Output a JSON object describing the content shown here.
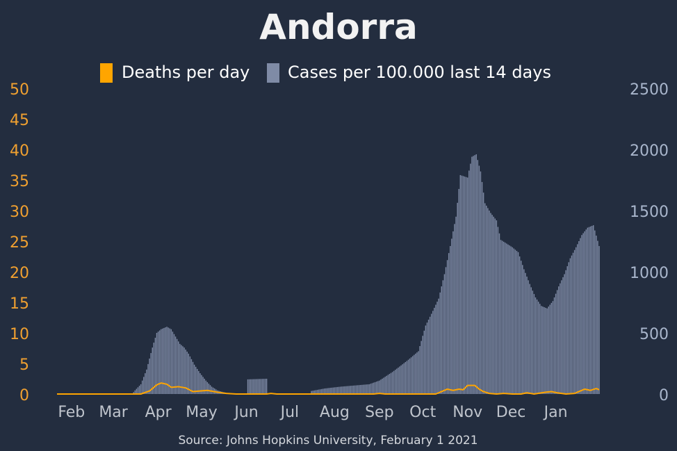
{
  "colors": {
    "background": "#232d3f",
    "deaths": "#ffa500",
    "cases": "#7f8ba6",
    "left_axis": "#f0a030",
    "right_axis": "#a9b6cc",
    "month_labels": "#bfc4cc",
    "title": "#f2f2f2"
  },
  "chart_data": {
    "type": "bar",
    "title": "Andorra",
    "source": "Source: Johns Hopkins University, February 1 2021",
    "legend": {
      "placement": "top-center",
      "entries": [
        "Deaths per day",
        "Cases per 100.000 last 14 days"
      ]
    },
    "grid": false,
    "x_axis": {
      "type": "date",
      "range": [
        "2020-01-22",
        "2021-01-31"
      ],
      "tick_labels": [
        "Feb",
        "Mar",
        "Apr",
        "May",
        "Jun",
        "Jul",
        "Aug",
        "Sep",
        "Oct",
        "Nov",
        "Dec",
        "Jan"
      ]
    },
    "y_left": {
      "label": "",
      "range": [
        0,
        50
      ],
      "ticks": [
        "0",
        "5",
        "10",
        "15",
        "20",
        "25",
        "30",
        "35",
        "40",
        "45",
        "50"
      ]
    },
    "y_right": {
      "label": "",
      "range": [
        0,
        2500
      ],
      "ticks": [
        "0",
        "500",
        "1000",
        "1500",
        "2000",
        "2500"
      ]
    },
    "series": [
      {
        "name": "Cases per 100.000 last 14 days",
        "type": "bar",
        "axis": "right",
        "points": [
          [
            "2020-01-22",
            0
          ],
          [
            "2020-03-01",
            0
          ],
          [
            "2020-03-14",
            0
          ],
          [
            "2020-03-16",
            30
          ],
          [
            "2020-03-20",
            80
          ],
          [
            "2020-03-24",
            200
          ],
          [
            "2020-03-28",
            380
          ],
          [
            "2020-03-31",
            500
          ],
          [
            "2020-04-03",
            530
          ],
          [
            "2020-04-07",
            550
          ],
          [
            "2020-04-10",
            530
          ],
          [
            "2020-04-13",
            470
          ],
          [
            "2020-04-16",
            410
          ],
          [
            "2020-04-19",
            380
          ],
          [
            "2020-04-22",
            330
          ],
          [
            "2020-04-26",
            240
          ],
          [
            "2020-04-30",
            170
          ],
          [
            "2020-05-04",
            110
          ],
          [
            "2020-05-08",
            60
          ],
          [
            "2020-05-12",
            30
          ],
          [
            "2020-05-16",
            15
          ],
          [
            "2020-05-20",
            5
          ],
          [
            "2020-05-24",
            0
          ],
          [
            "2020-06-01",
            0
          ],
          [
            "2020-06-02",
            120
          ],
          [
            "2020-06-15",
            125
          ],
          [
            "2020-06-16",
            0
          ],
          [
            "2020-07-15",
            0
          ],
          [
            "2020-07-16",
            25
          ],
          [
            "2020-07-25",
            45
          ],
          [
            "2020-08-05",
            60
          ],
          [
            "2020-08-15",
            70
          ],
          [
            "2020-08-25",
            80
          ],
          [
            "2020-09-01",
            110
          ],
          [
            "2020-09-10",
            180
          ],
          [
            "2020-09-20",
            270
          ],
          [
            "2020-09-28",
            350
          ],
          [
            "2020-10-03",
            560
          ],
          [
            "2020-10-08",
            680
          ],
          [
            "2020-10-12",
            780
          ],
          [
            "2020-10-16",
            980
          ],
          [
            "2020-10-20",
            1210
          ],
          [
            "2020-10-24",
            1450
          ],
          [
            "2020-10-27",
            1790
          ],
          [
            "2020-11-01",
            1770
          ],
          [
            "2020-11-04",
            1940
          ],
          [
            "2020-11-07",
            1960
          ],
          [
            "2020-11-10",
            1820
          ],
          [
            "2020-11-13",
            1560
          ],
          [
            "2020-11-17",
            1480
          ],
          [
            "2020-11-21",
            1420
          ],
          [
            "2020-11-24",
            1260
          ],
          [
            "2020-11-28",
            1230
          ],
          [
            "2020-12-02",
            1200
          ],
          [
            "2020-12-06",
            1160
          ],
          [
            "2020-12-10",
            1020
          ],
          [
            "2020-12-14",
            900
          ],
          [
            "2020-12-18",
            790
          ],
          [
            "2020-12-22",
            720
          ],
          [
            "2020-12-26",
            700
          ],
          [
            "2020-12-30",
            760
          ],
          [
            "2021-01-03",
            880
          ],
          [
            "2021-01-07",
            980
          ],
          [
            "2021-01-11",
            1110
          ],
          [
            "2021-01-15",
            1200
          ],
          [
            "2021-01-19",
            1300
          ],
          [
            "2021-01-23",
            1360
          ],
          [
            "2021-01-27",
            1380
          ],
          [
            "2021-01-31",
            1210
          ]
        ]
      },
      {
        "name": "Deaths per day",
        "type": "line",
        "axis": "left",
        "points": [
          [
            "2020-01-22",
            0
          ],
          [
            "2020-03-20",
            0
          ],
          [
            "2020-03-26",
            0.5
          ],
          [
            "2020-03-31",
            1.5
          ],
          [
            "2020-04-03",
            1.8
          ],
          [
            "2020-04-07",
            1.6
          ],
          [
            "2020-04-10",
            1.1
          ],
          [
            "2020-04-15",
            1.2
          ],
          [
            "2020-04-20",
            1.0
          ],
          [
            "2020-04-25",
            0.4
          ],
          [
            "2020-04-30",
            0.5
          ],
          [
            "2020-05-05",
            0.6
          ],
          [
            "2020-05-12",
            0.3
          ],
          [
            "2020-05-18",
            0.1
          ],
          [
            "2020-05-25",
            0
          ],
          [
            "2020-06-15",
            0
          ],
          [
            "2020-06-18",
            0.1
          ],
          [
            "2020-06-22",
            0
          ],
          [
            "2020-08-28",
            0
          ],
          [
            "2020-09-01",
            0.1
          ],
          [
            "2020-09-05",
            0
          ],
          [
            "2020-10-10",
            0
          ],
          [
            "2020-10-14",
            0.4
          ],
          [
            "2020-10-18",
            0.8
          ],
          [
            "2020-10-22",
            0.6
          ],
          [
            "2020-10-26",
            0.8
          ],
          [
            "2020-10-29",
            0.7
          ],
          [
            "2020-11-01",
            1.4
          ],
          [
            "2020-11-06",
            1.4
          ],
          [
            "2020-11-09",
            0.8
          ],
          [
            "2020-11-12",
            0.4
          ],
          [
            "2020-11-16",
            0.1
          ],
          [
            "2020-11-21",
            0
          ],
          [
            "2020-11-26",
            0.1
          ],
          [
            "2020-12-02",
            0
          ],
          [
            "2020-12-08",
            0
          ],
          [
            "2020-12-12",
            0.2
          ],
          [
            "2020-12-17",
            0
          ],
          [
            "2020-12-25",
            0.3
          ],
          [
            "2020-12-29",
            0.4
          ],
          [
            "2021-01-02",
            0.2
          ],
          [
            "2021-01-08",
            0
          ],
          [
            "2021-01-14",
            0.1
          ],
          [
            "2021-01-18",
            0.5
          ],
          [
            "2021-01-21",
            0.8
          ],
          [
            "2021-01-25",
            0.6
          ],
          [
            "2021-01-29",
            0.9
          ],
          [
            "2021-01-31",
            0.7
          ]
        ]
      }
    ]
  }
}
